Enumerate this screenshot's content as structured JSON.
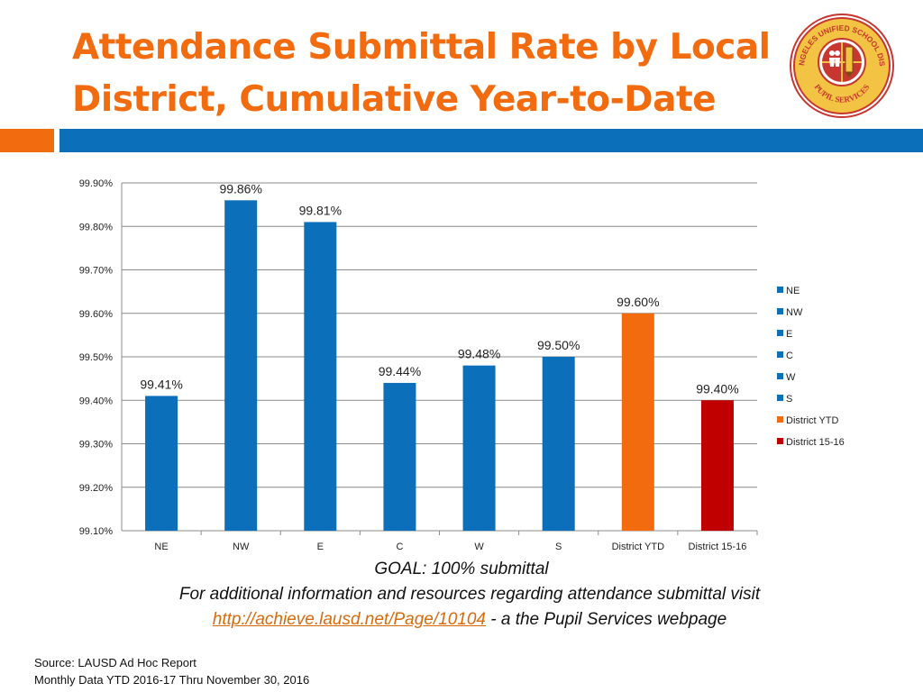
{
  "header": {
    "title_line1": "Attendance Submittal Rate by Local",
    "title_line2": "District, Cumulative Year-to-Date",
    "title_color": "#f26b0f",
    "band_orange": "#f26b0f",
    "band_blue": "#0c6fba"
  },
  "logo": {
    "text_top": "LOS ANGELES UNIFIED SCHOOL DISTRICT",
    "text_bottom": "PUPIL SERVICES",
    "icon": "lausd-pupil-services-seal-icon"
  },
  "chart_data": {
    "type": "bar",
    "categories": [
      "NE",
      "NW",
      "E",
      "C",
      "W",
      "S",
      "District YTD",
      "District 15-16"
    ],
    "values": [
      99.41,
      99.86,
      99.81,
      99.44,
      99.48,
      99.5,
      99.6,
      99.4
    ],
    "data_labels": [
      "99.41%",
      "99.86%",
      "99.81%",
      "99.44%",
      "99.48%",
      "99.50%",
      "99.60%",
      "99.40%"
    ],
    "colors": [
      "#0c6fba",
      "#0c6fba",
      "#0c6fba",
      "#0c6fba",
      "#0c6fba",
      "#0c6fba",
      "#f26b0f",
      "#c00000"
    ],
    "ylim": [
      99.1,
      99.9
    ],
    "yticks": [
      99.1,
      99.2,
      99.3,
      99.4,
      99.5,
      99.6,
      99.7,
      99.8,
      99.9
    ],
    "ytick_labels": [
      "99.10%",
      "99.20%",
      "99.30%",
      "99.40%",
      "99.50%",
      "99.60%",
      "99.70%",
      "99.80%",
      "99.90%"
    ],
    "legend": [
      "NE",
      "NW",
      "E",
      "C",
      "W",
      "S",
      "District YTD",
      "District 15-16"
    ],
    "legend_position": "right",
    "grid": true
  },
  "notes": {
    "goal": "GOAL:  100% submittal",
    "info": "For additional information and resources regarding attendance submittal visit",
    "link": "http://achieve.lausd.net/Page/10104",
    "link_suffix": "  - a the Pupil Services webpage"
  },
  "source": {
    "line1": "Source: LAUSD Ad Hoc Report",
    "line2": "Monthly Data  YTD 2016-17 Thru November 30, 2016"
  }
}
